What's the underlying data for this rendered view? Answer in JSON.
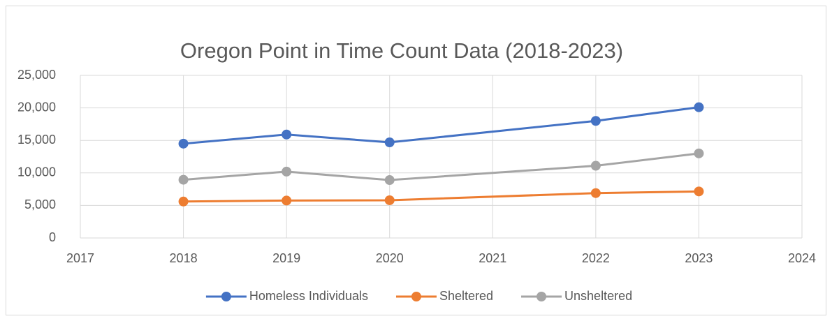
{
  "chart_data": {
    "type": "line",
    "title": "Oregon Point in Time Count Data (2018-2023)",
    "x": [
      2018,
      2019,
      2020,
      2022,
      2023
    ],
    "series": [
      {
        "name": "Homeless Individuals",
        "color": "#4472c4",
        "values": [
          14500,
          15900,
          14700,
          18000,
          20100
        ]
      },
      {
        "name": "Sheltered",
        "color": "#ed7d31",
        "values": [
          5600,
          5750,
          5800,
          6900,
          7150
        ]
      },
      {
        "name": "Unsheltered",
        "color": "#a5a5a5",
        "values": [
          8950,
          10200,
          8900,
          11100,
          13000
        ]
      }
    ],
    "xlim": [
      2017,
      2024
    ],
    "xticks": [
      2017,
      2018,
      2019,
      2020,
      2021,
      2022,
      2023,
      2024
    ],
    "ylim": [
      0,
      25000
    ],
    "yticks": [
      0,
      {
        "value": 5000,
        "label": "5,000"
      },
      {
        "value": 10000,
        "label": "10,000"
      },
      {
        "value": 15000,
        "label": "15,000"
      },
      {
        "value": 20000,
        "label": "20,000"
      },
      {
        "value": 25000,
        "label": "25,000"
      }
    ],
    "grid": true,
    "legend": "bottom"
  }
}
